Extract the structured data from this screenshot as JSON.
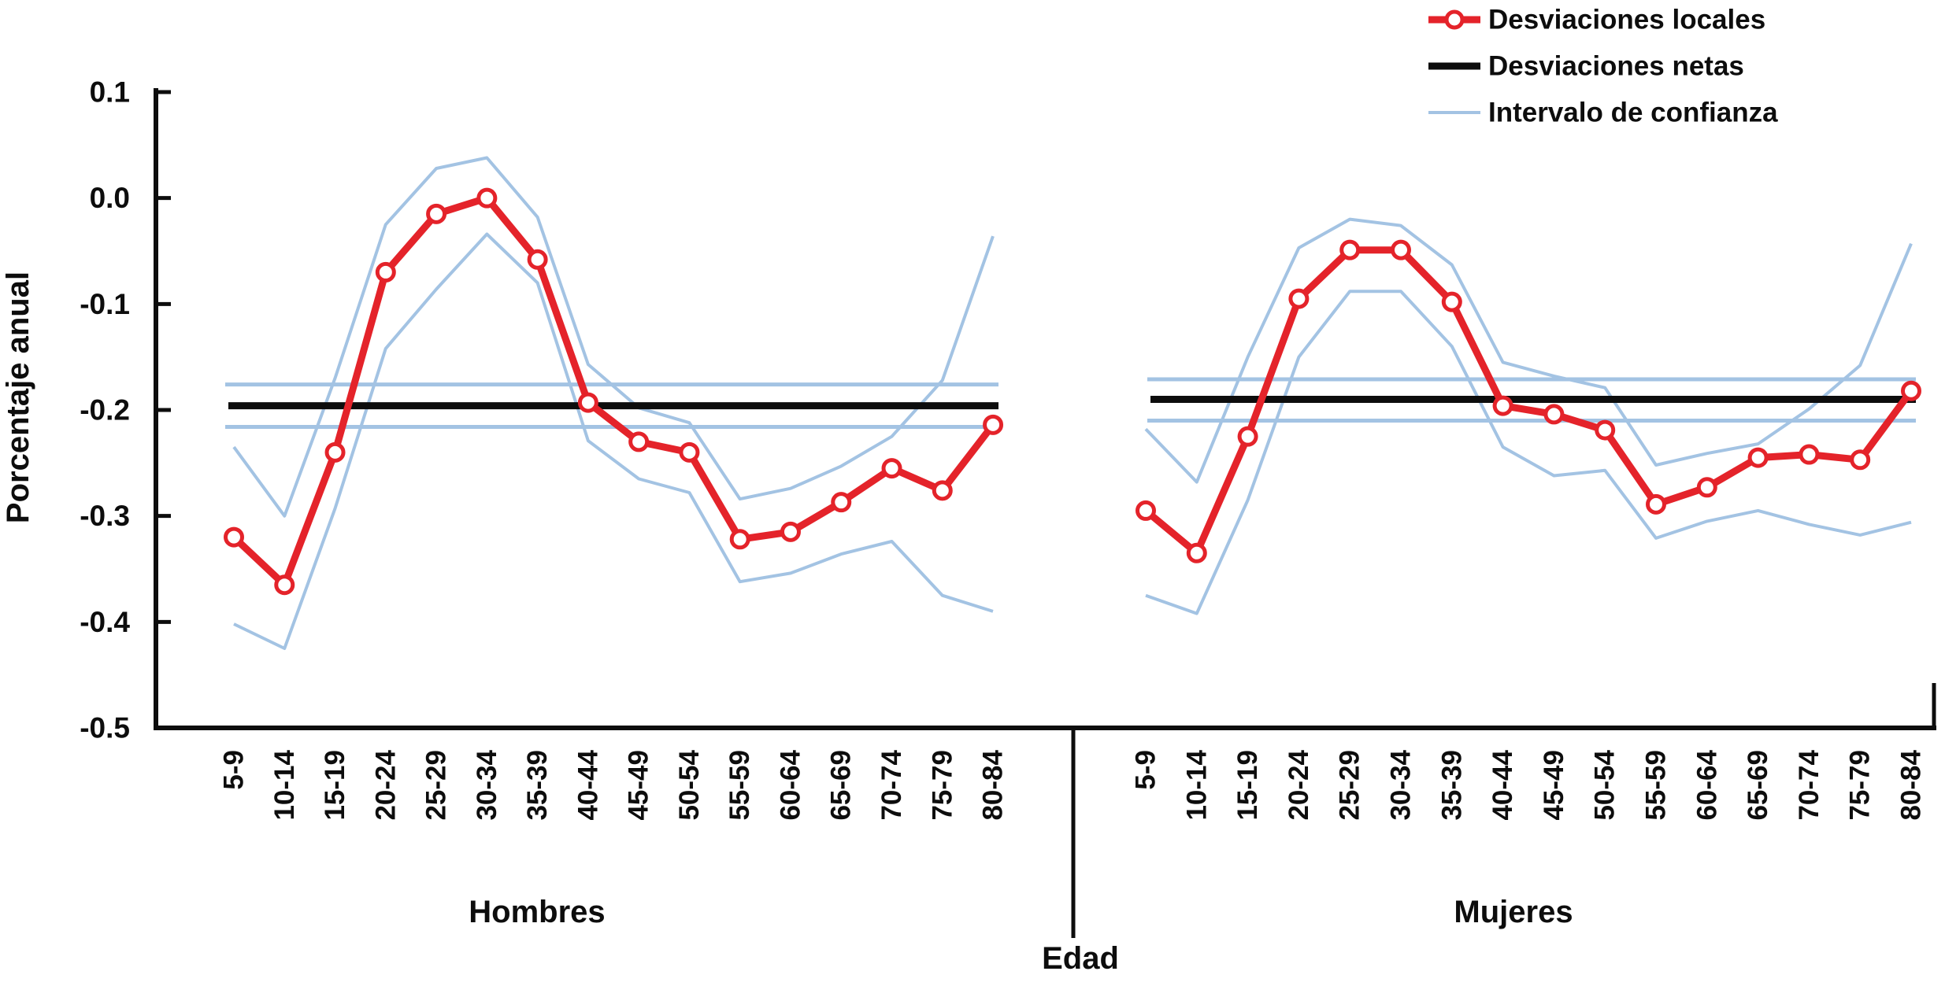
{
  "figure": {
    "ylabel": "Porcentaje anual",
    "xlabel": "Edad",
    "colors": {
      "local": "#e4232a",
      "net": "#0d0d0d",
      "ci": "#a3c3e3"
    },
    "legend": [
      {
        "label": "Desviaciones locales",
        "series": "locales"
      },
      {
        "label": "Desviaciones netas",
        "series": "netas"
      },
      {
        "label": "Intervalo de confianza",
        "series": "ci"
      }
    ]
  },
  "chart_data": [
    {
      "type": "line",
      "title": "Hombres",
      "xlabel": "Edad",
      "ylabel": "Porcentaje anual",
      "ylim": [
        -0.5,
        0.1
      ],
      "yticks": [
        "0.1",
        "0.0",
        "-0.1",
        "-0.2",
        "-0.3",
        "-0.4",
        "-0.5"
      ],
      "categories": [
        "5-9",
        "10-14",
        "15-19",
        "20-24",
        "25-29",
        "30-34",
        "35-39",
        "40-44",
        "45-49",
        "50-54",
        "55-59",
        "60-64",
        "65-69",
        "70-74",
        "75-79",
        "80-84"
      ],
      "series": [
        {
          "name": "Desviaciones locales",
          "values": [
            -0.32,
            -0.365,
            -0.24,
            -0.07,
            -0.015,
            0.0,
            -0.058,
            -0.193,
            -0.23,
            -0.24,
            -0.322,
            -0.315,
            -0.287,
            -0.255,
            -0.276,
            -0.214
          ]
        },
        {
          "name": "Desviaciones netas",
          "value": -0.196
        },
        {
          "name": "Intervalo de confianza superior (locales)",
          "values": [
            -0.235,
            -0.3,
            -0.17,
            -0.025,
            0.028,
            0.038,
            -0.018,
            -0.157,
            -0.198,
            -0.212,
            -0.284,
            -0.274,
            -0.253,
            -0.225,
            -0.172,
            -0.036
          ]
        },
        {
          "name": "Intervalo de confianza inferior (locales)",
          "values": [
            -0.402,
            -0.425,
            -0.293,
            -0.142,
            -0.086,
            -0.034,
            -0.08,
            -0.229,
            -0.265,
            -0.278,
            -0.362,
            -0.354,
            -0.336,
            -0.324,
            -0.375,
            -0.39
          ]
        },
        {
          "name": "Intervalo de confianza superior (netas)",
          "value": -0.176
        },
        {
          "name": "Intervalo de confianza inferior (netas)",
          "value": -0.216
        }
      ]
    },
    {
      "type": "line",
      "title": "Mujeres",
      "xlabel": "Edad",
      "ylabel": "Porcentaje anual",
      "ylim": [
        -0.5,
        0.1
      ],
      "yticks": [
        "0.1",
        "0.0",
        "-0.1",
        "-0.2",
        "-0.3",
        "-0.4",
        "-0.5"
      ],
      "categories": [
        "5-9",
        "10-14",
        "15-19",
        "20-24",
        "25-29",
        "30-34",
        "35-39",
        "40-44",
        "45-49",
        "50-54",
        "55-59",
        "60-64",
        "65-69",
        "70-74",
        "75-79",
        "80-84"
      ],
      "series": [
        {
          "name": "Desviaciones locales",
          "values": [
            -0.295,
            -0.335,
            -0.225,
            -0.095,
            -0.049,
            -0.049,
            -0.098,
            -0.196,
            -0.204,
            -0.219,
            -0.289,
            -0.273,
            -0.245,
            -0.242,
            -0.247,
            -0.182
          ]
        },
        {
          "name": "Desviaciones netas",
          "value": -0.19
        },
        {
          "name": "Intervalo de confianza superior (locales)",
          "values": [
            -0.218,
            -0.268,
            -0.15,
            -0.047,
            -0.02,
            -0.026,
            -0.063,
            -0.155,
            -0.168,
            -0.179,
            -0.252,
            -0.241,
            -0.232,
            -0.199,
            -0.158,
            -0.043
          ]
        },
        {
          "name": "Intervalo de confianza inferior (locales)",
          "values": [
            -0.375,
            -0.392,
            -0.285,
            -0.15,
            -0.088,
            -0.088,
            -0.14,
            -0.235,
            -0.262,
            -0.257,
            -0.321,
            -0.305,
            -0.295,
            -0.308,
            -0.318,
            -0.306
          ]
        },
        {
          "name": "Intervalo de confianza superior (netas)",
          "value": -0.171
        },
        {
          "name": "Intervalo de confianza inferior (netas)",
          "value": -0.21
        }
      ]
    }
  ]
}
